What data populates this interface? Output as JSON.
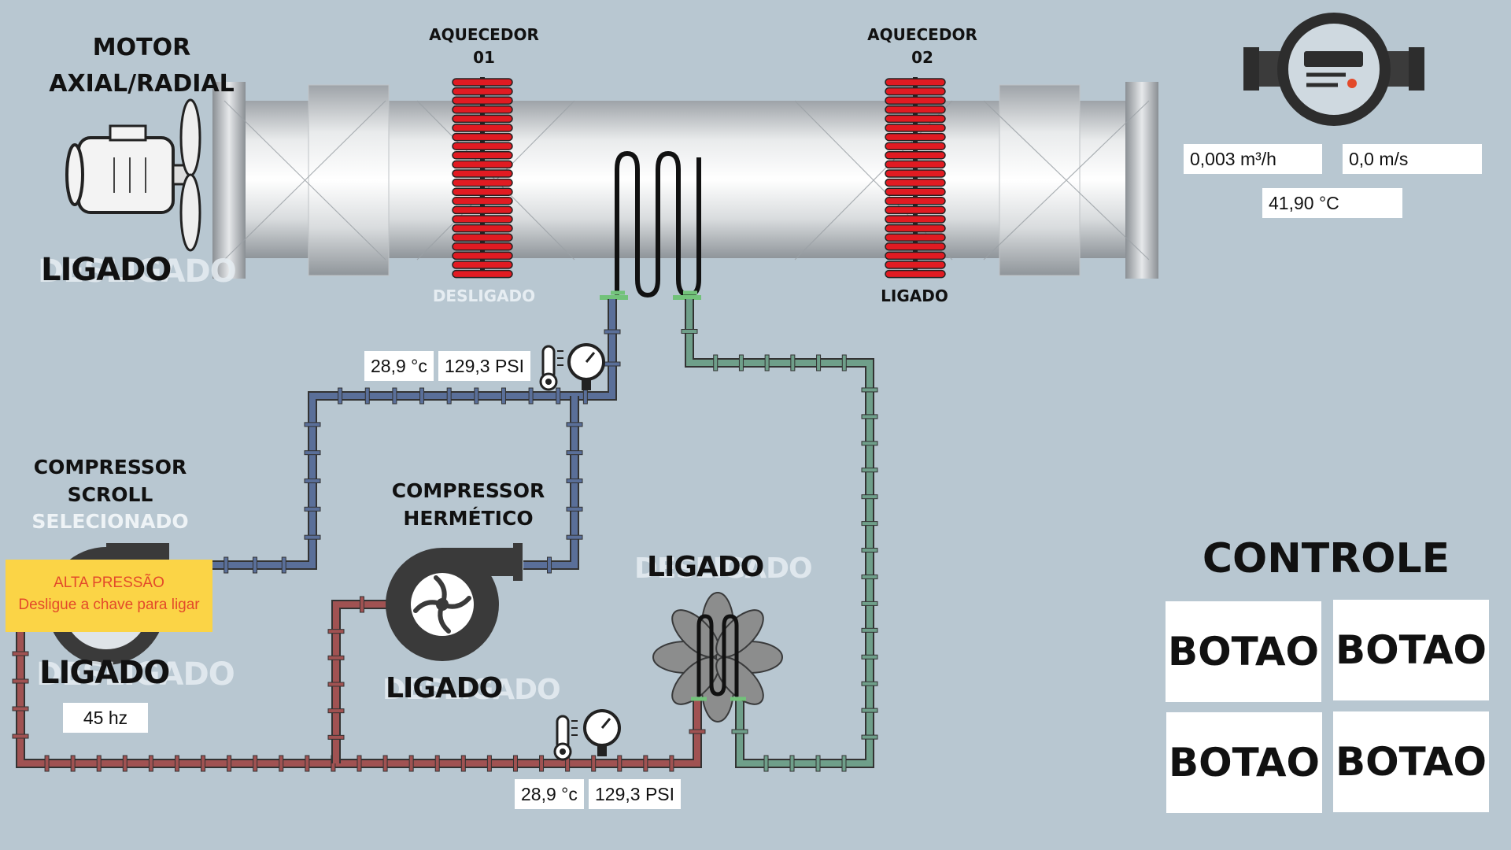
{
  "motor": {
    "title_line1": "MOTOR",
    "title_line2": "AXIAL/RADIAL",
    "status_ghost": "DESLIGADO",
    "status_active": "LIGADO"
  },
  "heater1": {
    "title_line1": "AQUECEDOR",
    "title_line2": "01",
    "status": "DESLIGADO"
  },
  "heater2": {
    "title_line1": "AQUECEDOR",
    "title_line2": "02",
    "status": "LIGADO"
  },
  "meter": {
    "flow": "0,003 m³/h",
    "velocity": "0,0 m/s",
    "temperature": "41,90 °C"
  },
  "upper_sensor": {
    "temperature": "28,9 °c",
    "pressure": "129,3 PSI"
  },
  "lower_sensor": {
    "temperature": "28,9 °c",
    "pressure": "129,3 PSI"
  },
  "compressor_scroll": {
    "title_line1": "COMPRESSOR",
    "title_line2": "SCROLL",
    "selected": "SELECIONADO",
    "status_ghost": "DESLIGADO",
    "status_active": "LIGADO",
    "frequency": "45 hz"
  },
  "warning": {
    "line1": "ALTA PRESSÃO",
    "line2": "Desligue a chave para ligar"
  },
  "compressor_hermetic": {
    "title_line1": "COMPRESSOR",
    "title_line2": "HERMÉTICO",
    "status_ghost": "DESLIGADO",
    "status_active": "LIGADO"
  },
  "evaporator": {
    "status_ghost": "DESLIGADO",
    "status_active": "LIGADO"
  },
  "control": {
    "title": "CONTROLE",
    "buttons": [
      "BOTAO",
      "BOTAO",
      "BOTAO",
      "BOTAO"
    ]
  },
  "colors": {
    "background": "#b8c7d1",
    "heater_red": "#e11b22",
    "pipe_blue": "#5a6f99",
    "pipe_green": "#6f9f8a",
    "pipe_red": "#a05252",
    "warning_bg": "#fbd446",
    "warning_text": "#e34a2a"
  },
  "icons": [
    "fan-motor-icon",
    "heater-coil-icon",
    "flow-meter-icon",
    "thermometer-icon",
    "pressure-gauge-icon",
    "compressor-icon",
    "condenser-fan-icon"
  ]
}
